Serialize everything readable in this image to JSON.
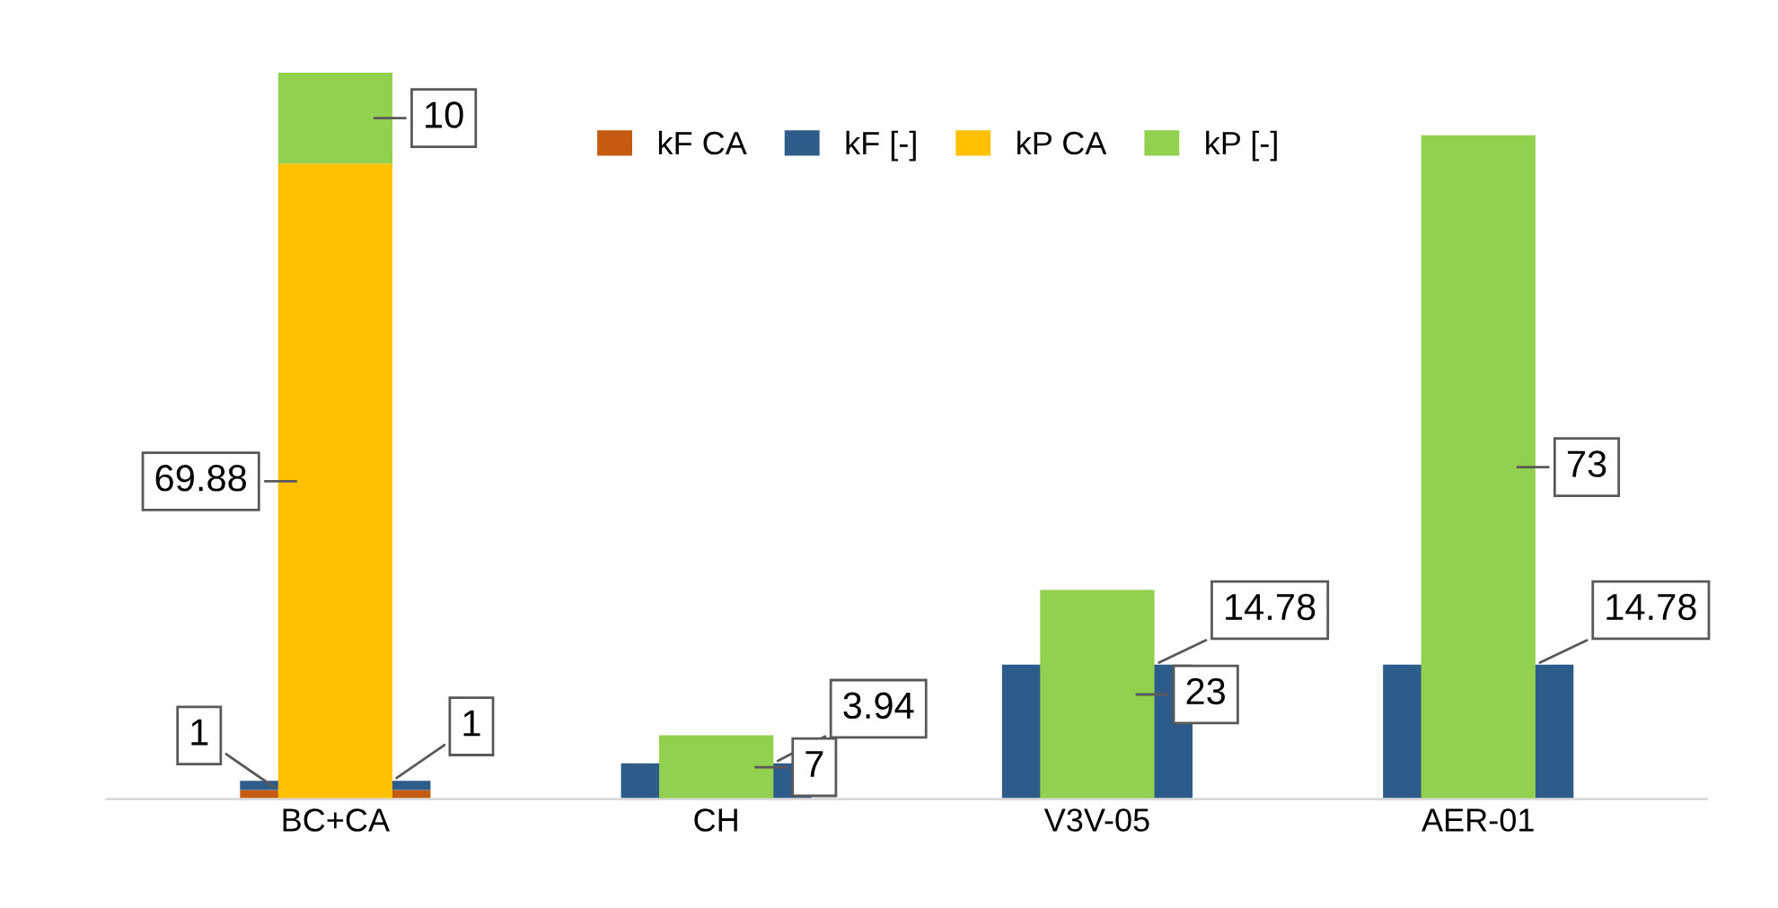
{
  "chart_data": {
    "type": "bar",
    "stacked": true,
    "categories": [
      "BC+CA",
      "CH",
      "V3V-05",
      "AER-01"
    ],
    "series": [
      {
        "name": "kF CA",
        "color": "#c55a11",
        "values": [
          1,
          null,
          null,
          null
        ]
      },
      {
        "name": "kF [-]",
        "color": "#2e5c8a",
        "values": [
          1,
          3.94,
          14.78,
          14.78
        ]
      },
      {
        "name": "kP CA",
        "color": "#ffc000",
        "values": [
          69.88,
          null,
          null,
          null
        ],
        "axis": "y2"
      },
      {
        "name": "kP [-]",
        "color": "#92d050",
        "values": [
          10,
          7,
          23,
          73
        ],
        "axis": "y2"
      }
    ],
    "ylim": [
      0,
      79.88
    ],
    "y2lim": [
      0,
      79.88
    ],
    "data_labels": true,
    "legend": "top",
    "grid": false
  }
}
